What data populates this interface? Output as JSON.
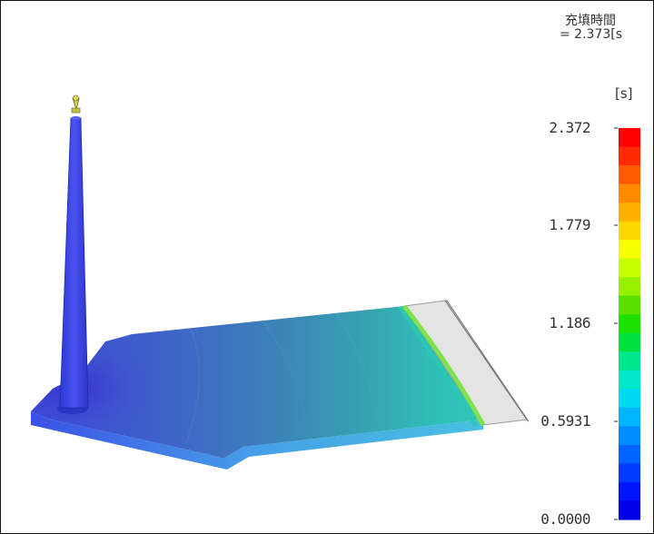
{
  "result_panel": {
    "title": "充填時間",
    "subtitle": "= 2.373[s",
    "unit": "[s]"
  },
  "legend": {
    "ticks": [
      "2.372",
      "1.779",
      "1.186",
      "0.5931",
      "0.0000"
    ],
    "max_value": 2.372,
    "min_value": 0.0,
    "colors": [
      "#ff0000",
      "#ff2a00",
      "#ff5a00",
      "#ff8a00",
      "#ffb000",
      "#ffd800",
      "#f8ff00",
      "#c8ff00",
      "#96f000",
      "#5ae000",
      "#1ee000",
      "#00e040",
      "#00e68c",
      "#00e6c8",
      "#00d8f0",
      "#00b4ff",
      "#008cff",
      "#0064ff",
      "#003cff",
      "#0014ff",
      "#0000e6"
    ]
  },
  "model": {
    "filled_color": "#4a63d9",
    "unfilled_color": "#e6e6e6",
    "flow_front_color": "#7fe24a"
  }
}
